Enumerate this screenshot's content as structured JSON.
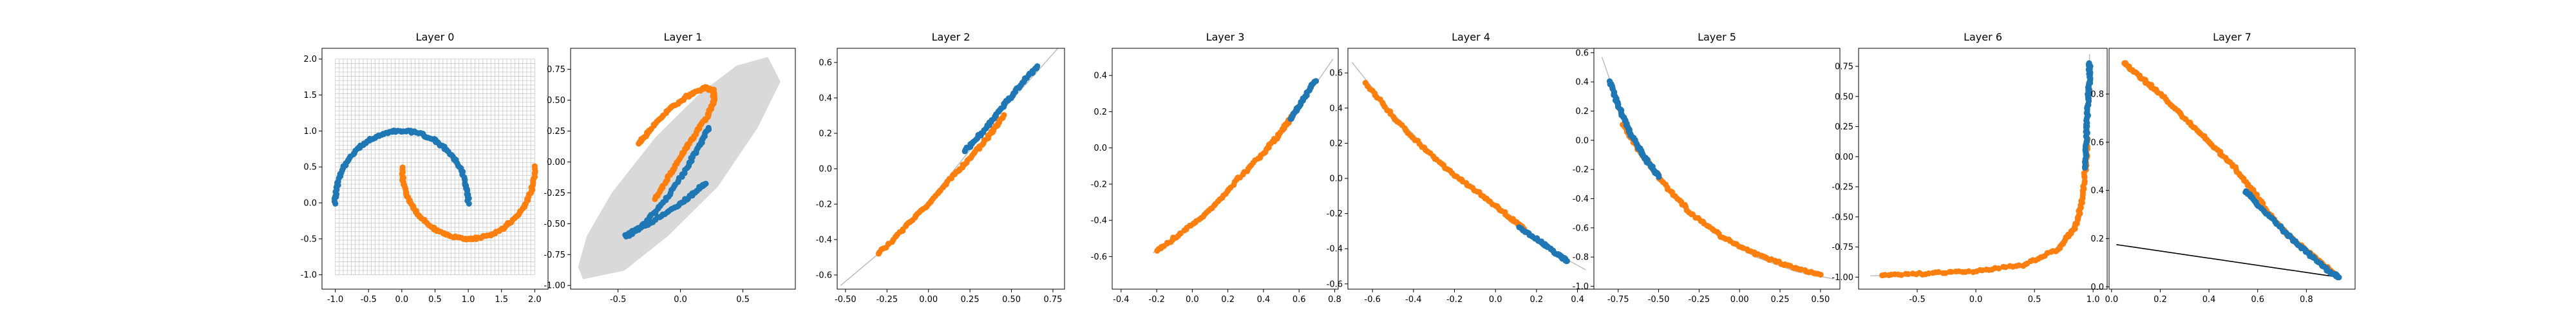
{
  "colors": {
    "class_a": "#1f77b4",
    "class_b": "#ff7f0e",
    "manifold": "#bdbdbd",
    "grid": "#c9c9c9",
    "region": "#d9d9d9",
    "line": "#000000"
  },
  "chart_data": [
    {
      "title": "Layer 0",
      "type": "scatter",
      "xlim": [
        -1.2,
        2.2
      ],
      "ylim": [
        -1.2,
        2.15
      ],
      "xticks": [
        "-1.0",
        "-0.5",
        "0.0",
        "0.5",
        "1.0",
        "1.5",
        "2.0"
      ],
      "xtick_values": [
        -1.0,
        -0.5,
        0.0,
        0.5,
        1.0,
        1.5,
        2.0
      ],
      "yticks": [
        "-1.0",
        "-0.5",
        "0.0",
        "0.5",
        "1.0",
        "1.5",
        "2.0"
      ],
      "ytick_values": [
        -1.0,
        -0.5,
        0.0,
        0.5,
        1.0,
        1.5,
        2.0
      ],
      "grid_range": {
        "x": [
          -1.0,
          2.0
        ],
        "y": [
          -1.0,
          2.0
        ],
        "count": 50
      },
      "series": [
        {
          "values": {
            "arc": {
              "cx": 0.0,
              "cy": 0.0,
              "r": 1.0,
              "theta": [
                0,
                180
              ]
            }
          }
        },
        {
          "values": {
            "arc": {
              "cx": 1.0,
              "cy": 0.5,
              "r": 1.0,
              "theta": [
                180,
                360
              ]
            }
          }
        }
      ]
    },
    {
      "title": "Layer 1",
      "type": "scatter",
      "xlim": [
        -0.88,
        0.92
      ],
      "ylim": [
        -1.03,
        0.92
      ],
      "xticks": [
        "-0.5",
        "0.0",
        "0.5"
      ],
      "xtick_values": [
        -0.5,
        0.0,
        0.5
      ],
      "yticks": [
        "-1.00",
        "-0.75",
        "-0.50",
        "-0.25",
        "0.00",
        "0.25",
        "0.50",
        "0.75"
      ],
      "ytick_values": [
        -1.0,
        -0.75,
        -0.5,
        -0.25,
        0.0,
        0.25,
        0.5,
        0.75
      ],
      "region": [
        [
          -0.78,
          -0.95
        ],
        [
          -0.45,
          -0.88
        ],
        [
          -0.1,
          -0.6
        ],
        [
          0.3,
          -0.2
        ],
        [
          0.62,
          0.28
        ],
        [
          0.8,
          0.65
        ],
        [
          0.7,
          0.85
        ],
        [
          0.45,
          0.78
        ],
        [
          0.15,
          0.55
        ],
        [
          -0.2,
          0.2
        ],
        [
          -0.55,
          -0.25
        ],
        [
          -0.75,
          -0.6
        ],
        [
          -0.82,
          -0.85
        ]
      ],
      "series": [
        {
          "values": [
            [
              0.23,
              0.28
            ],
            [
              0.15,
              0.13
            ],
            [
              0.05,
              -0.05
            ],
            [
              -0.1,
              -0.28
            ],
            [
              -0.25,
              -0.46
            ],
            [
              -0.38,
              -0.58
            ],
            [
              -0.44,
              -0.6
            ],
            [
              -0.38,
              -0.56
            ],
            [
              -0.25,
              -0.5
            ],
            [
              -0.05,
              -0.37
            ],
            [
              0.1,
              -0.26
            ],
            [
              0.2,
              -0.17
            ]
          ]
        },
        {
          "values": [
            [
              -0.33,
              0.15
            ],
            [
              -0.25,
              0.25
            ],
            [
              -0.1,
              0.42
            ],
            [
              0.05,
              0.53
            ],
            [
              0.2,
              0.6
            ],
            [
              0.26,
              0.58
            ],
            [
              0.27,
              0.5
            ],
            [
              0.22,
              0.38
            ],
            [
              0.1,
              0.2
            ],
            [
              0.0,
              0.04
            ],
            [
              -0.1,
              -0.13
            ],
            [
              -0.2,
              -0.3
            ]
          ]
        }
      ]
    },
    {
      "title": "Layer 2",
      "type": "scatter",
      "xlim": [
        -0.55,
        0.82
      ],
      "ylim": [
        -0.68,
        0.68
      ],
      "xticks": [
        "-0.50",
        "-0.25",
        "0.00",
        "0.25",
        "0.50",
        "0.75"
      ],
      "xtick_values": [
        -0.5,
        -0.25,
        0.0,
        0.25,
        0.5,
        0.75
      ],
      "yticks": [
        "-0.6",
        "-0.4",
        "-0.2",
        "0.0",
        "0.2",
        "0.4",
        "0.6"
      ],
      "ytick_values": [
        -0.6,
        -0.4,
        -0.2,
        0.0,
        0.2,
        0.4,
        0.6
      ],
      "manifold": [
        [
          -0.53,
          -0.66
        ],
        [
          -0.2,
          -0.4
        ],
        [
          0.1,
          -0.07
        ],
        [
          0.4,
          0.28
        ],
        [
          0.78,
          0.68
        ]
      ],
      "series": [
        {
          "values": [
            [
              0.22,
              0.1
            ],
            [
              0.32,
              0.2
            ],
            [
              0.42,
              0.32
            ],
            [
              0.5,
              0.41
            ],
            [
              0.58,
              0.5
            ],
            [
              0.66,
              0.58
            ]
          ]
        },
        {
          "values": [
            [
              -0.3,
              -0.48
            ],
            [
              -0.15,
              -0.34
            ],
            [
              0.0,
              -0.2
            ],
            [
              0.15,
              -0.04
            ],
            [
              0.27,
              0.08
            ],
            [
              0.38,
              0.2
            ],
            [
              0.45,
              0.3
            ]
          ]
        }
      ]
    },
    {
      "title": "Layer 3",
      "type": "scatter",
      "xlim": [
        -0.45,
        0.82
      ],
      "ylim": [
        -0.78,
        0.55
      ],
      "xticks": [
        "-0.4",
        "-0.2",
        "0.0",
        "0.2",
        "0.4",
        "0.6",
        "0.8"
      ],
      "xtick_values": [
        -0.4,
        -0.2,
        0.0,
        0.2,
        0.4,
        0.6,
        0.8
      ],
      "yticks": [
        "-0.6",
        "-0.4",
        "-0.2",
        "0.0",
        "0.2",
        "0.4"
      ],
      "ytick_values": [
        -0.6,
        -0.4,
        -0.2,
        0.0,
        0.2,
        0.4
      ],
      "manifold": [
        [
          -0.22,
          -0.58
        ],
        [
          0.0,
          -0.42
        ],
        [
          0.2,
          -0.23
        ],
        [
          0.4,
          -0.02
        ],
        [
          0.6,
          0.22
        ],
        [
          0.79,
          0.49
        ]
      ],
      "series": [
        {
          "values": [
            [
              0.55,
              0.16
            ],
            [
              0.6,
              0.23
            ],
            [
              0.65,
              0.31
            ],
            [
              0.69,
              0.37
            ]
          ]
        },
        {
          "values": [
            [
              -0.2,
              -0.57
            ],
            [
              -0.05,
              -0.46
            ],
            [
              0.1,
              -0.34
            ],
            [
              0.25,
              -0.18
            ],
            [
              0.4,
              -0.03
            ],
            [
              0.5,
              0.09
            ],
            [
              0.56,
              0.17
            ]
          ]
        }
      ]
    },
    {
      "title": "Layer 4",
      "type": "scatter",
      "xlim": [
        -0.72,
        0.48
      ],
      "ylim": [
        -0.63,
        0.74
      ],
      "xticks": [
        "-0.6",
        "-0.4",
        "-0.2",
        "0.0",
        "0.2",
        "0.4"
      ],
      "xtick_values": [
        -0.6,
        -0.4,
        -0.2,
        0.0,
        0.2,
        0.4
      ],
      "yticks": [
        "-0.6",
        "-0.4",
        "-0.2",
        "0.0",
        "0.2",
        "0.4",
        "0.6"
      ],
      "ytick_values": [
        -0.6,
        -0.4,
        -0.2,
        0.0,
        0.2,
        0.4,
        0.6
      ],
      "manifold": [
        [
          -0.7,
          0.66
        ],
        [
          -0.5,
          0.37
        ],
        [
          -0.3,
          0.13
        ],
        [
          -0.1,
          -0.07
        ],
        [
          0.1,
          -0.26
        ],
        [
          0.3,
          -0.43
        ],
        [
          0.44,
          -0.52
        ]
      ],
      "series": [
        {
          "values": [
            [
              0.12,
              -0.28
            ],
            [
              0.22,
              -0.36
            ],
            [
              0.3,
              -0.43
            ],
            [
              0.35,
              -0.47
            ]
          ]
        },
        {
          "values": [
            [
              -0.63,
              0.54
            ],
            [
              -0.5,
              0.35
            ],
            [
              -0.35,
              0.17
            ],
            [
              -0.2,
              0.02
            ],
            [
              -0.05,
              -0.11
            ],
            [
              0.08,
              -0.23
            ],
            [
              0.14,
              -0.29
            ]
          ]
        }
      ]
    },
    {
      "title": "Layer 5",
      "type": "scatter",
      "xlim": [
        -0.9,
        0.62
      ],
      "ylim": [
        -1.02,
        0.63
      ],
      "xticks": [
        "-0.75",
        "-0.50",
        "-0.25",
        "0.00",
        "0.25",
        "0.50"
      ],
      "xtick_values": [
        -0.75,
        -0.5,
        -0.25,
        0.0,
        0.25,
        0.5
      ],
      "yticks": [
        "-1.0",
        "-0.8",
        "-0.6",
        "-0.4",
        "-0.2",
        "0.0",
        "0.2",
        "0.4",
        "0.6"
      ],
      "ytick_values": [
        -1.0,
        -0.8,
        -0.6,
        -0.4,
        -0.2,
        0.0,
        0.2,
        0.4,
        0.6
      ],
      "manifold": [
        [
          -0.85,
          0.57
        ],
        [
          -0.75,
          0.25
        ],
        [
          -0.6,
          -0.08
        ],
        [
          -0.4,
          -0.4
        ],
        [
          -0.15,
          -0.64
        ],
        [
          0.1,
          -0.8
        ],
        [
          0.35,
          -0.9
        ],
        [
          0.58,
          -0.95
        ]
      ],
      "series": [
        {
          "values": [
            [
              -0.8,
              0.4
            ],
            [
              -0.76,
              0.27
            ],
            [
              -0.72,
              0.16
            ],
            [
              -0.68,
              0.06
            ],
            [
              -0.62,
              -0.06
            ],
            [
              -0.56,
              -0.16
            ],
            [
              -0.5,
              -0.25
            ]
          ]
        },
        {
          "values": [
            [
              -0.72,
              0.1
            ],
            [
              -0.6,
              -0.1
            ],
            [
              -0.45,
              -0.32
            ],
            [
              -0.3,
              -0.5
            ],
            [
              -0.1,
              -0.67
            ],
            [
              0.1,
              -0.78
            ],
            [
              0.3,
              -0.86
            ],
            [
              0.5,
              -0.92
            ]
          ]
        }
      ]
    },
    {
      "title": "Layer 6",
      "type": "scatter",
      "xlim": [
        -1.0,
        1.12
      ],
      "ylim": [
        -1.1,
        0.9
      ],
      "xticks": [
        "-0.5",
        "0.0",
        "0.5",
        "1.0"
      ],
      "xtick_values": [
        -0.5,
        0.0,
        0.5,
        1.0
      ],
      "yticks": [
        "-1.00",
        "-0.75",
        "-0.50",
        "-0.25",
        "0.00",
        "0.25",
        "0.50",
        "0.75"
      ],
      "ytick_values": [
        -1.0,
        -0.75,
        -0.5,
        -0.25,
        0.0,
        0.25,
        0.5,
        0.75
      ],
      "manifold": [
        [
          -0.9,
          -0.99
        ],
        [
          -0.3,
          -0.97
        ],
        [
          0.3,
          -0.92
        ],
        [
          0.65,
          -0.8
        ],
        [
          0.85,
          -0.55
        ],
        [
          0.93,
          -0.2
        ],
        [
          0.96,
          0.3
        ],
        [
          0.97,
          0.85
        ]
      ],
      "series": [
        {
          "values": [
            [
              0.93,
              -0.1
            ],
            [
              0.94,
              0.1
            ],
            [
              0.95,
              0.3
            ],
            [
              0.96,
              0.5
            ],
            [
              0.97,
              0.65
            ],
            [
              0.97,
              0.77
            ]
          ]
        },
        {
          "values": [
            [
              -0.8,
              -0.98
            ],
            [
              -0.4,
              -0.97
            ],
            [
              0.0,
              -0.95
            ],
            [
              0.4,
              -0.9
            ],
            [
              0.7,
              -0.77
            ],
            [
              0.85,
              -0.58
            ],
            [
              0.91,
              -0.35
            ],
            [
              0.94,
              -0.05
            ],
            [
              0.95,
              0.15
            ]
          ]
        }
      ]
    },
    {
      "title": "Layer 7",
      "type": "scatter",
      "xlim": [
        -0.01,
        1.0
      ],
      "ylim": [
        -0.01,
        0.99
      ],
      "xticks": [
        "0.0",
        "0.2",
        "0.4",
        "0.6",
        "0.8"
      ],
      "xtick_values": [
        0.0,
        0.2,
        0.4,
        0.6,
        0.8
      ],
      "yticks": [
        "0.0",
        "0.2",
        "0.4",
        "0.6",
        "0.8"
      ],
      "ytick_values": [
        0.0,
        0.2,
        0.4,
        0.6,
        0.8
      ],
      "line": [
        [
          0.02,
          0.175
        ],
        [
          0.93,
          0.04
        ]
      ],
      "series": [
        {
          "values": [
            [
              0.55,
              0.4
            ],
            [
              0.6,
              0.34
            ],
            [
              0.68,
              0.26
            ],
            [
              0.76,
              0.18
            ],
            [
              0.84,
              0.11
            ],
            [
              0.9,
              0.06
            ],
            [
              0.93,
              0.04
            ]
          ]
        },
        {
          "values": [
            [
              0.05,
              0.93
            ],
            [
              0.12,
              0.87
            ],
            [
              0.2,
              0.8
            ],
            [
              0.3,
              0.7
            ],
            [
              0.4,
              0.6
            ],
            [
              0.5,
              0.5
            ],
            [
              0.58,
              0.4
            ],
            [
              0.65,
              0.3
            ],
            [
              0.72,
              0.22
            ],
            [
              0.8,
              0.15
            ],
            [
              0.87,
              0.09
            ],
            [
              0.92,
              0.05
            ]
          ]
        }
      ]
    }
  ]
}
